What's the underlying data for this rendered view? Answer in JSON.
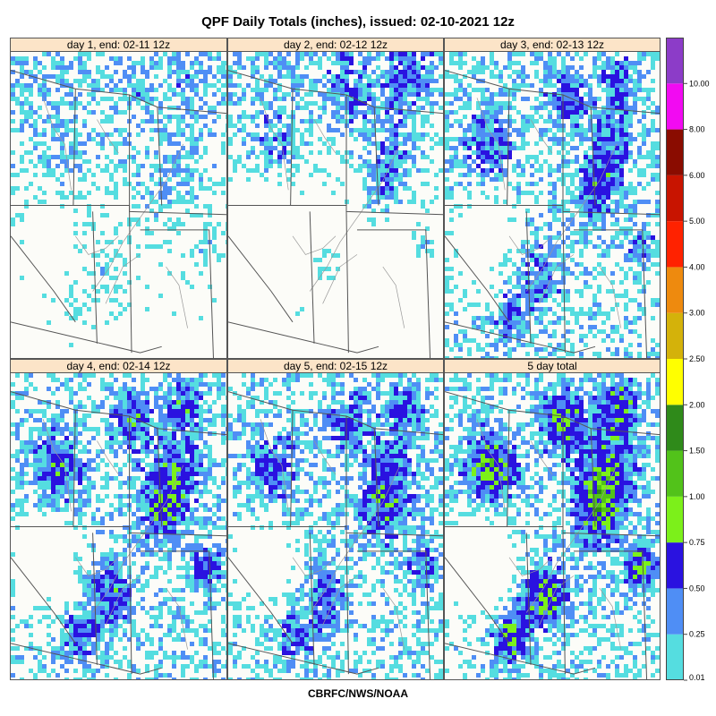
{
  "title": "QPF Daily Totals (inches),  issued: 02-10-2021 12z",
  "footer": "CBRFC/NWS/NOAA",
  "colors": {
    "panel_bg": "#fcfcf8",
    "header_bg": "#fce4c8",
    "state_line": "#555555",
    "river": "#999999"
  },
  "panels": [
    {
      "label": "day 1, end: 02-11 12z",
      "intensity": 0.2
    },
    {
      "label": "day 2, end: 02-12 12z",
      "intensity": 0.45
    },
    {
      "label": "day 3, end: 02-13 12z",
      "intensity": 0.55
    },
    {
      "label": "day 4, end: 02-14 12z",
      "intensity": 0.7
    },
    {
      "label": "day 5, end: 02-15 12z",
      "intensity": 0.6
    },
    {
      "label": "5 day total",
      "intensity": 1.0
    }
  ],
  "chart_data": {
    "type": "heatmap",
    "title": "QPF Daily Totals (inches),  issued: 02-10-2021 12z",
    "colorbar": {
      "ticks": [
        "0.01",
        "0.25",
        "0.50",
        "0.75",
        "1.00",
        "1.50",
        "2.00",
        "2.50",
        "3.00",
        "4.00",
        "5.00",
        "6.00",
        "8.00",
        "10.00"
      ],
      "bins": [
        {
          "from": 0.01,
          "to": 0.1,
          "color": "#55dde0"
        },
        {
          "from": 0.1,
          "to": 0.25,
          "color": "#4f8ef5"
        },
        {
          "from": 0.25,
          "to": 0.5,
          "color": "#2a12e0"
        },
        {
          "from": 0.5,
          "to": 0.75,
          "color": "#7cf01a"
        },
        {
          "from": 0.75,
          "to": 1.0,
          "color": "#52c21a"
        },
        {
          "from": 1.0,
          "to": 1.5,
          "color": "#2f8a1a"
        },
        {
          "from": 1.5,
          "to": 2.0,
          "color": "#ffff00"
        },
        {
          "from": 2.0,
          "to": 2.5,
          "color": "#d4b20a"
        },
        {
          "from": 2.5,
          "to": 3.0,
          "color": "#ee8a0e"
        },
        {
          "from": 3.0,
          "to": 4.0,
          "color": "#ff2200"
        },
        {
          "from": 4.0,
          "to": 5.0,
          "color": "#c81400"
        },
        {
          "from": 5.0,
          "to": 6.0,
          "color": "#8a0c00"
        },
        {
          "from": 6.0,
          "to": 8.0,
          "color": "#f20af2"
        },
        {
          "from": 8.0,
          "to": 10.0,
          "color": "#8c3cc8"
        }
      ]
    }
  }
}
